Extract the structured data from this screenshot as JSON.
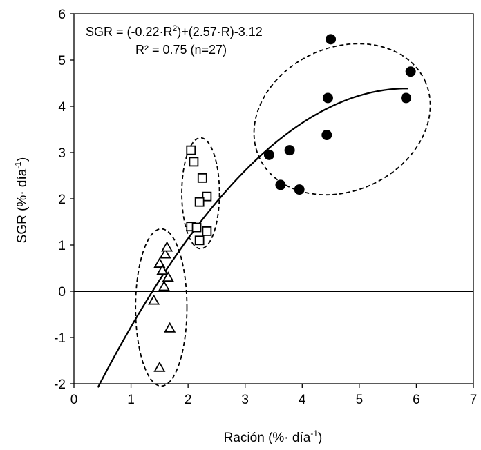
{
  "chart_data": {
    "type": "scatter",
    "xlabel": "Ración (%· día",
    "xlabel_sup": "-1",
    "xlabel_end": ")",
    "ylabel": "SGR (%· día",
    "ylabel_sup": "-1",
    "ylabel_end": ")",
    "xlim": [
      0,
      7
    ],
    "ylim": [
      -2,
      6
    ],
    "xticks": [
      "0",
      "1",
      "2",
      "3",
      "4",
      "5",
      "6",
      "7"
    ],
    "yticks": [
      "-2",
      "-1",
      "0",
      "1",
      "2",
      "3",
      "4",
      "5",
      "6"
    ],
    "grid": false,
    "annotation": {
      "line1_a": "SGR = (-0.22·R",
      "line1_sup": "2",
      "line1_b": ")+(2.57·R)-3.12",
      "line2": "R² = 0.75 (n=27)"
    },
    "fit": {
      "type": "quadratic",
      "a": -0.22,
      "b": 2.57,
      "c": -3.12,
      "x_range": [
        0.42,
        5.85
      ]
    },
    "series": [
      {
        "marker": "triangle-open",
        "points": [
          [
            1.4,
            -0.2
          ],
          [
            1.5,
            0.6
          ],
          [
            1.55,
            0.45
          ],
          [
            1.6,
            0.8
          ],
          [
            1.63,
            0.95
          ],
          [
            1.65,
            0.3
          ],
          [
            1.58,
            0.1
          ],
          [
            1.68,
            -0.8
          ],
          [
            1.5,
            -1.65
          ]
        ]
      },
      {
        "marker": "square-open",
        "points": [
          [
            2.05,
            3.05
          ],
          [
            2.1,
            2.8
          ],
          [
            2.25,
            2.45
          ],
          [
            2.33,
            2.05
          ],
          [
            2.2,
            1.93
          ],
          [
            2.05,
            1.4
          ],
          [
            2.15,
            1.38
          ],
          [
            2.33,
            1.3
          ],
          [
            2.2,
            1.1
          ]
        ]
      },
      {
        "marker": "circle-filled",
        "points": [
          [
            3.42,
            2.95
          ],
          [
            3.62,
            2.3
          ],
          [
            3.78,
            3.05
          ],
          [
            3.95,
            2.2
          ],
          [
            4.43,
            3.38
          ],
          [
            4.45,
            4.18
          ],
          [
            4.5,
            5.45
          ],
          [
            5.82,
            4.18
          ],
          [
            5.9,
            4.75
          ]
        ]
      }
    ],
    "ellipses": [
      {
        "cx": 1.53,
        "cy": -0.35,
        "rx": 0.45,
        "ry": 1.7
      },
      {
        "cx": 2.22,
        "cy": 2.12,
        "rx": 0.33,
        "ry": 1.2
      },
      {
        "cx": 4.7,
        "cy": 3.72,
        "rx": 1.6,
        "ry": 1.55,
        "angle": -25
      }
    ]
  }
}
